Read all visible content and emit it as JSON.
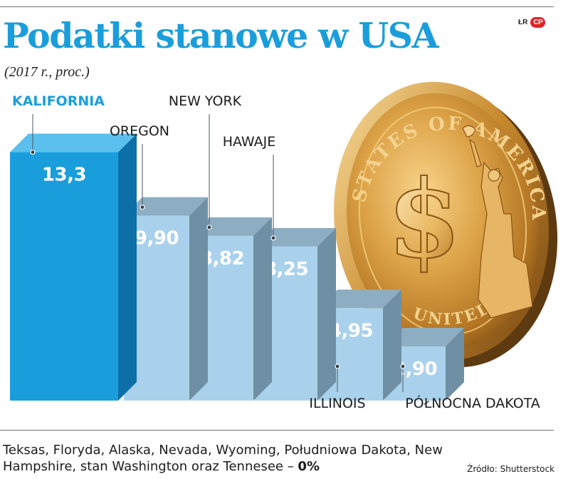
{
  "header": {
    "title": "Podatki stanowe w USA",
    "subtitle": "(2017 r., proc.)",
    "credit": "ŁR",
    "brand": "CP"
  },
  "colors": {
    "title": "#1a9edb",
    "highlight_bar": "#1a9edb",
    "highlight_label": "#1a9edb",
    "bar_front": "#a9d1ec",
    "bar_top": "#8dadc2",
    "bar_side": "#6e8fa4",
    "coin_gold": "#c88a2e"
  },
  "chart_data": {
    "type": "bar",
    "title": "Podatki stanowe w USA",
    "subtitle": "(2017 r., proc.)",
    "categories": [
      "KALIFORNIA",
      "OREGON",
      "NEW YORK",
      "HAWAJE",
      "ILLINOIS",
      "PÓŁNOCNA DAKOTA"
    ],
    "values": [
      13.3,
      9.9,
      8.82,
      8.25,
      4.95,
      2.9
    ],
    "value_labels": [
      "13,3",
      "9,90",
      "8,82",
      "8,25",
      "4,95",
      "2,90"
    ],
    "highlight": "KALIFORNIA",
    "grid": false,
    "legend": "none",
    "coin": {
      "inscription": "STATES OF AMERICA",
      "bottom_inscription": "UNITED",
      "symbol": "$"
    }
  },
  "footnote": {
    "text": "Teksas, Floryda, Alaska, Nevada, Wyoming, Południowa Dakota, New Hampshire, stan Washington oraz Tennesee – ",
    "emphasis": "0%"
  },
  "source": "Źródło: Shutterstock"
}
